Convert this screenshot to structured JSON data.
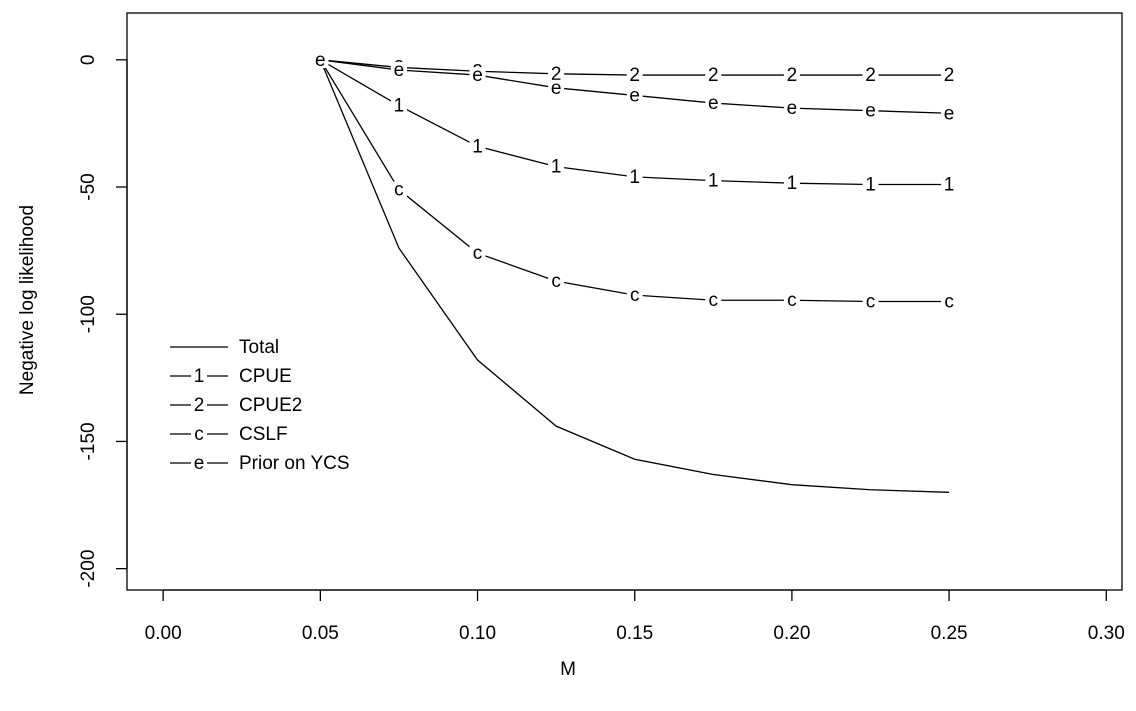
{
  "chart_data": {
    "type": "line",
    "x_label": "M",
    "y_label": "Negative log likelihood",
    "x": [
      0.05,
      0.075,
      0.1,
      0.125,
      0.15,
      0.175,
      0.2,
      0.225,
      0.25
    ],
    "series": [
      {
        "name": "Total",
        "color": "#000000",
        "values": [
          0,
          -74,
          -118,
          -144,
          -157,
          -163,
          -167,
          -169,
          -170
        ]
      },
      {
        "name": "CPUE",
        "color": "#000000",
        "symbol": "1",
        "values": [
          0,
          -18,
          -34,
          -42,
          -46,
          -47.5,
          -48.5,
          -49,
          -49
        ]
      },
      {
        "name": "CPUE2",
        "color": "#000000",
        "symbol": "2",
        "values": [
          0,
          -3,
          -4.5,
          -5.5,
          -6,
          -6,
          -6,
          -6,
          -6
        ]
      },
      {
        "name": "CSLF",
        "color": "#000000",
        "symbol": "c",
        "values": [
          0,
          -51,
          -76,
          -87,
          -92.5,
          -94.5,
          -94.5,
          -95,
          -95
        ]
      },
      {
        "name": "Prior on YCS",
        "color": "#000000",
        "symbol": "e",
        "values": [
          0,
          -4,
          -6,
          -11,
          -14,
          -17,
          -19,
          -20,
          -21
        ]
      }
    ],
    "xlim": [
      -0.0115,
      0.305
    ],
    "ylim": [
      -208.4,
      18.4
    ],
    "xticks": [
      {
        "value": 0,
        "label": "0.00"
      },
      {
        "value": 0.05,
        "label": "0.05"
      },
      {
        "value": 0.1,
        "label": "0.10"
      },
      {
        "value": 0.15,
        "label": "0.15"
      },
      {
        "value": 0.2,
        "label": "0.20"
      },
      {
        "value": 0.25,
        "label": "0.25"
      },
      {
        "value": 0.3,
        "label": "0.30"
      }
    ],
    "yticks": [
      0,
      -50,
      -100,
      -150,
      -200
    ],
    "legend_position": "left"
  }
}
